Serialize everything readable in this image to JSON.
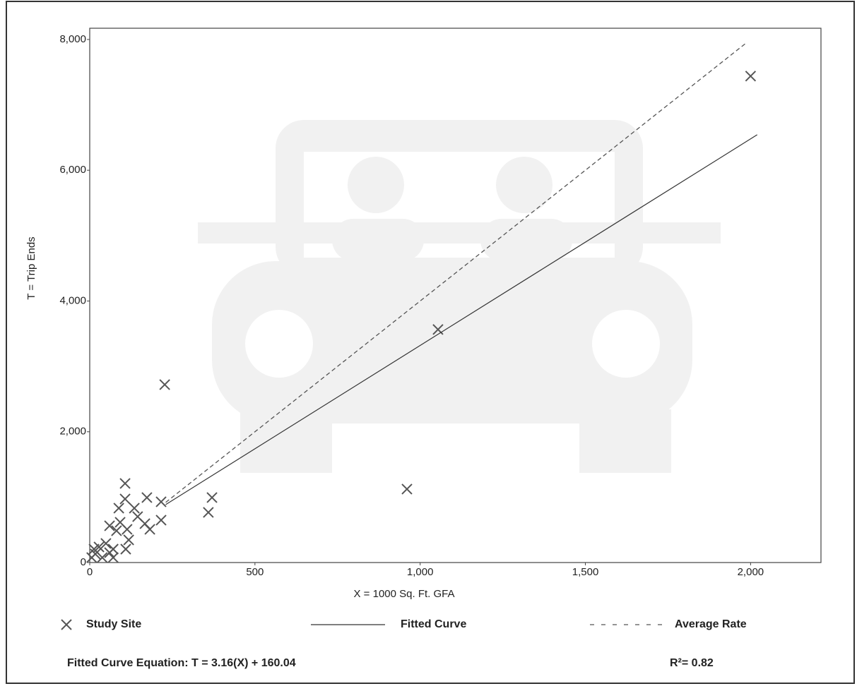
{
  "chart_data": {
    "type": "scatter",
    "x_label": "X = 1000 Sq. Ft. GFA",
    "y_label": "T = Trip Ends",
    "xlim": [
      0,
      2213
    ],
    "ylim": [
      0,
      8172
    ],
    "xticks": [
      0,
      500,
      {
        "value": 1000,
        "label": "1,000"
      },
      {
        "value": 1500,
        "label": "1,500"
      },
      {
        "value": 2000,
        "label": "2,000"
      }
    ],
    "yticks": [
      0,
      {
        "value": 2000,
        "label": "2,000"
      },
      {
        "value": 4000,
        "label": "4,000"
      },
      {
        "value": 6000,
        "label": "6,000"
      },
      {
        "value": 8000,
        "label": "8,000"
      }
    ],
    "series": [
      {
        "name": "Study Site",
        "style": "marker",
        "color": "#555555",
        "x": [
          2000,
          1054,
          960,
          227,
          370,
          359,
          107,
          107,
          173,
          216,
          216,
          182,
          167,
          145,
          135,
          92,
          88,
          60,
          81,
          113,
          118,
          109,
          71,
          49,
          28,
          13,
          6,
          38,
          71,
          60,
          17
        ],
        "values": [
          7440,
          3564,
          1123,
          2721,
          994,
          767,
          1210,
          972,
          994,
          929,
          648,
          508,
          594,
          702,
          832,
          616,
          832,
          562,
          486,
          508,
          346,
          205,
          205,
          292,
          238,
          205,
          76,
          76,
          76,
          151,
          130
        ]
      },
      {
        "name": "Fitted Curve",
        "style": "solid",
        "color": "#333333",
        "x": [
          230,
          2020
        ],
        "values": [
          887,
          6543
        ]
      },
      {
        "name": "Average Rate",
        "style": "dashed",
        "color": "#555555",
        "x": [
          230,
          1985
        ],
        "values": [
          920,
          7940
        ]
      }
    ],
    "equation": "Fitted Curve Equation: T = 3.16(X) + 160.04",
    "r_squared": "R²= 0.82"
  }
}
